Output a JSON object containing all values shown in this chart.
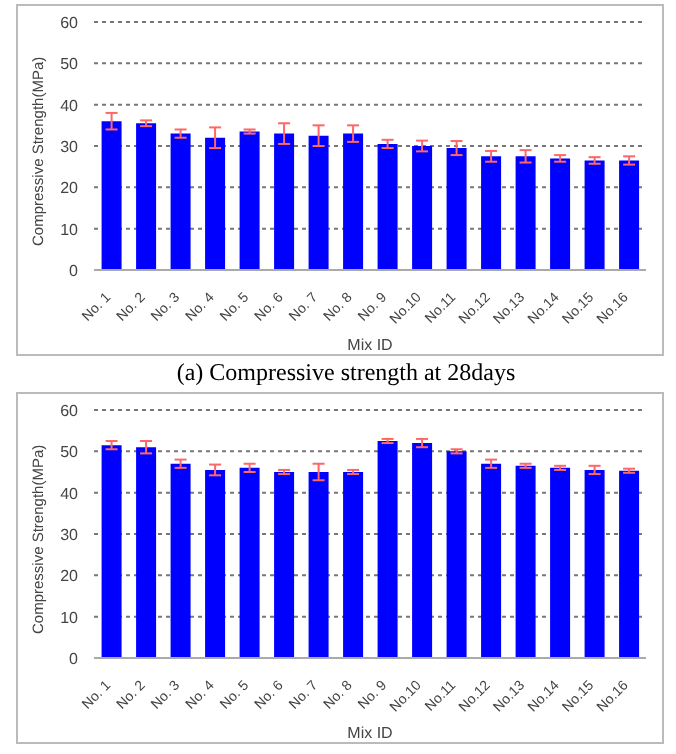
{
  "chart_data": [
    {
      "type": "bar",
      "xlabel": "Mix ID",
      "ylabel": "Compressive Strength(MPa)",
      "categories": [
        "No. 1",
        "No. 2",
        "No. 3",
        "No. 4",
        "No. 5",
        "No. 6",
        "No. 7",
        "No. 8",
        "No. 9",
        "No.10",
        "No.11",
        "No.12",
        "No.13",
        "No.14",
        "No.15",
        "No.16"
      ],
      "values": [
        36,
        35.5,
        33,
        32,
        33.5,
        33,
        32.5,
        33,
        30.5,
        30,
        29.5,
        27.5,
        27.5,
        27,
        26.5,
        26.5
      ],
      "errors": [
        2,
        0.7,
        1,
        2.5,
        0.5,
        2.5,
        2.5,
        2,
        1,
        1.3,
        1.7,
        1.3,
        1.5,
        0.8,
        0.8,
        1
      ],
      "color": "#0000ff",
      "ylim": [
        0,
        60
      ],
      "yticks": [
        0,
        10,
        20,
        30,
        40,
        50,
        60
      ],
      "grid": "y",
      "legend": false,
      "annotations": [
        "(a) Compressive strength at 28days"
      ]
    },
    {
      "type": "bar",
      "xlabel": "Mix ID",
      "ylabel": "Compressive Strength(MPa)",
      "categories": [
        "No. 1",
        "No. 2",
        "No. 3",
        "No. 4",
        "No. 5",
        "No. 6",
        "No. 7",
        "No. 8",
        "No. 9",
        "No.10",
        "No.11",
        "No.12",
        "No.13",
        "No.14",
        "No.15",
        "No.16"
      ],
      "values": [
        51.5,
        51,
        47,
        45.5,
        46,
        45,
        45,
        45,
        52.5,
        52,
        50,
        47,
        46.5,
        46,
        45.5,
        45.3
      ],
      "errors": [
        1,
        1.5,
        1,
        1.3,
        1,
        0.5,
        2,
        0.5,
        0.5,
        1,
        0.5,
        1,
        0.5,
        0.5,
        1,
        0.5
      ],
      "color": "#0000ff",
      "ylim": [
        0,
        60
      ],
      "yticks": [
        0,
        10,
        20,
        30,
        40,
        50,
        60
      ],
      "grid": "y",
      "legend": false
    }
  ]
}
